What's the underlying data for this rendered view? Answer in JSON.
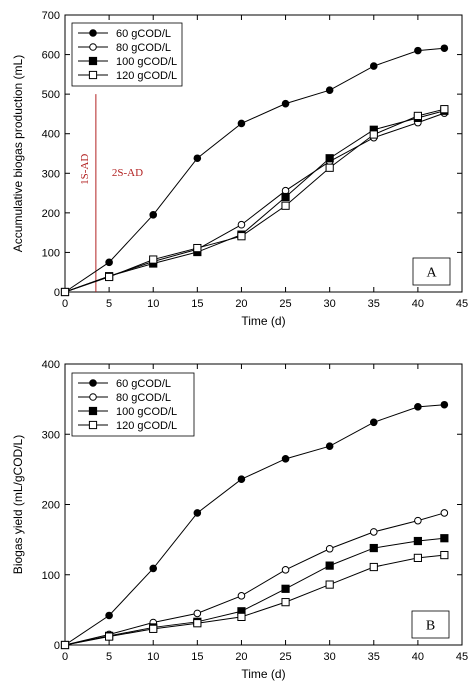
{
  "chart_data": [
    {
      "type": "line",
      "panel_label": "A",
      "xlabel": "Time (d)",
      "ylabel": "Accumulative biogas production (mL)",
      "xlim": [
        0,
        45
      ],
      "ylim": [
        0,
        700
      ],
      "xticks": [
        0,
        5,
        10,
        15,
        20,
        25,
        30,
        35,
        40,
        45
      ],
      "yticks": [
        0,
        100,
        200,
        300,
        400,
        500,
        600,
        700
      ],
      "legend_position": "top-left",
      "grid": false,
      "series": [
        {
          "name": "60 gCOD/L",
          "marker": "filled-circle",
          "x": [
            0,
            5,
            10,
            15,
            20,
            25,
            30,
            35,
            40,
            43
          ],
          "values": [
            0,
            75,
            195,
            338,
            426,
            476,
            510,
            571,
            610,
            616
          ]
        },
        {
          "name": "80 gCOD/L",
          "marker": "open-circle",
          "x": [
            0,
            5,
            10,
            15,
            20,
            25,
            30,
            35,
            40,
            43
          ],
          "values": [
            0,
            40,
            77,
            108,
            170,
            256,
            330,
            390,
            428,
            452
          ]
        },
        {
          "name": "100 gCOD/L",
          "marker": "filled-square",
          "x": [
            0,
            5,
            10,
            15,
            20,
            25,
            30,
            35,
            40,
            43
          ],
          "values": [
            0,
            40,
            72,
            101,
            145,
            240,
            338,
            410,
            440,
            458
          ]
        },
        {
          "name": "120 gCOD/L",
          "marker": "open-square",
          "x": [
            0,
            5,
            10,
            15,
            20,
            25,
            30,
            35,
            40,
            43
          ],
          "values": [
            0,
            38,
            82,
            111,
            141,
            218,
            314,
            398,
            445,
            462
          ]
        }
      ],
      "annotations": {
        "divider_x": 3.5,
        "left_text": "1S-AD",
        "right_text": "2S-AD",
        "color": "#b22222"
      }
    },
    {
      "type": "line",
      "panel_label": "B",
      "xlabel": "Time (d)",
      "ylabel": "Biogas yield (mL/gCOD/L)",
      "xlim": [
        0,
        45
      ],
      "ylim": [
        0,
        400
      ],
      "xticks": [
        0,
        5,
        10,
        15,
        20,
        25,
        30,
        35,
        40,
        45
      ],
      "yticks": [
        0,
        100,
        200,
        300,
        400
      ],
      "legend_position": "top-left",
      "grid": false,
      "series": [
        {
          "name": "60 gCOD/L",
          "marker": "filled-circle",
          "x": [
            0,
            5,
            10,
            15,
            20,
            25,
            30,
            35,
            40,
            43
          ],
          "values": [
            0,
            42,
            109,
            188,
            236,
            265,
            283,
            317,
            339,
            342
          ]
        },
        {
          "name": "80 gCOD/L",
          "marker": "open-circle",
          "x": [
            0,
            5,
            10,
            15,
            20,
            25,
            30,
            35,
            40,
            43
          ],
          "values": [
            0,
            15,
            32,
            45,
            70,
            107,
            137,
            161,
            177,
            188
          ]
        },
        {
          "name": "100 gCOD/L",
          "marker": "filled-square",
          "x": [
            0,
            5,
            10,
            15,
            20,
            25,
            30,
            35,
            40,
            43
          ],
          "values": [
            0,
            13,
            25,
            33,
            48,
            80,
            113,
            138,
            148,
            152
          ]
        },
        {
          "name": "120 gCOD/L",
          "marker": "open-square",
          "x": [
            0,
            5,
            10,
            15,
            20,
            25,
            30,
            35,
            40,
            43
          ],
          "values": [
            0,
            12,
            23,
            31,
            40,
            61,
            86,
            111,
            124,
            128
          ]
        }
      ]
    }
  ]
}
